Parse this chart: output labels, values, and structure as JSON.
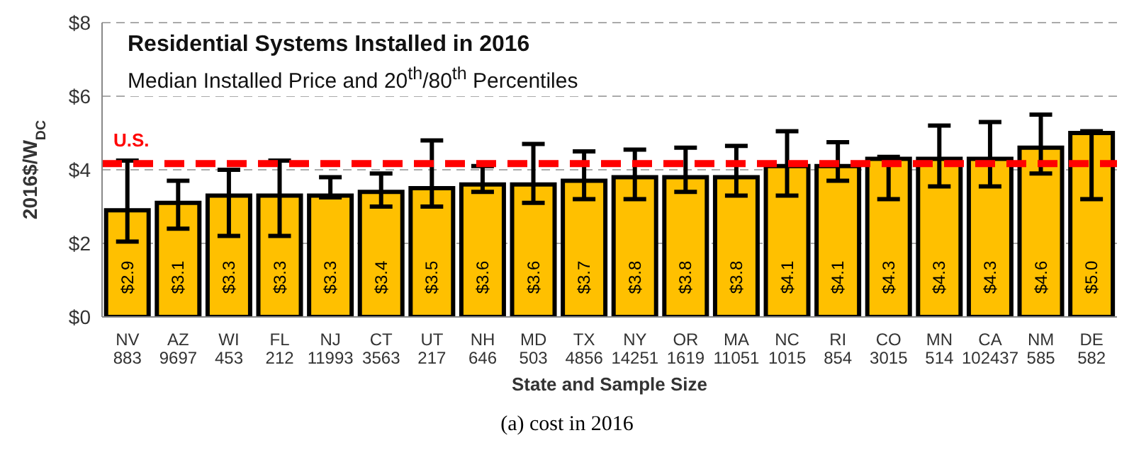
{
  "chart_data": {
    "type": "bar",
    "title": "Residential Systems Installed in 2016",
    "subtitle": "Median Installed Price and 20$^{th}$/80$^{th}$ Percentiles",
    "xlabel": "State and Sample Size",
    "ylabel": "2016$/W$_{DC}$",
    "annotations": [
      "(a) cost in 2016"
    ],
    "categories": [
      "NV\n883",
      "AZ\n9697",
      "WI\n453",
      "FL\n212",
      "NJ\n11993",
      "CT\n3563",
      "UT\n217",
      "NH\n646",
      "MD\n503",
      "TX\n4856",
      "NY\n14251",
      "OR\n1619",
      "MA\n11051",
      "NC\n1015",
      "RI\n854",
      "CO\n3015",
      "MN\n514",
      "CA\n102437",
      "NM\n585",
      "DE\n582"
    ],
    "values": [
      2.9,
      3.1,
      3.3,
      3.3,
      3.3,
      3.4,
      3.5,
      3.6,
      3.6,
      3.7,
      3.8,
      3.8,
      3.8,
      4.1,
      4.1,
      4.3,
      4.3,
      4.3,
      4.6,
      5.0
    ],
    "value_labels": [
      "$2.9",
      "$3.1",
      "$3.3",
      "$3.3",
      "$3.3",
      "$3.4",
      "$3.5",
      "$3.6",
      "$3.6",
      "$3.7",
      "$3.8",
      "$3.8",
      "$3.8",
      "$4.1",
      "$4.1",
      "$4.3",
      "$4.3",
      "$4.3",
      "$4.6",
      "$5.0"
    ],
    "errors": [
      [
        2.05,
        4.25
      ],
      [
        2.4,
        3.7
      ],
      [
        2.2,
        4.0
      ],
      [
        2.2,
        4.25
      ],
      [
        3.25,
        3.8
      ],
      [
        3.0,
        3.9
      ],
      [
        3.0,
        4.8
      ],
      [
        3.4,
        4.1
      ],
      [
        3.1,
        4.7
      ],
      [
        3.2,
        4.5
      ],
      [
        3.2,
        4.55
      ],
      [
        3.4,
        4.6
      ],
      [
        3.3,
        4.65
      ],
      [
        3.3,
        5.05
      ],
      [
        3.7,
        4.75
      ],
      [
        3.2,
        4.35
      ],
      [
        3.55,
        5.2
      ],
      [
        3.55,
        5.3
      ],
      [
        3.9,
        5.5
      ],
      [
        3.2,
        5.05
      ]
    ],
    "color": "#ffc000",
    "ylim": [
      0,
      8
    ],
    "yticks": [
      {
        "value": 0,
        "label": "$0"
      },
      {
        "value": 2,
        "label": "$2"
      },
      {
        "value": 4,
        "label": "$4"
      },
      {
        "value": 6,
        "label": "$6"
      },
      {
        "value": 8,
        "label": "$8"
      }
    ],
    "grid": "y",
    "ref_lines": [
      {
        "axis": "y",
        "value": 4.17,
        "label": "U.S.",
        "color": "#ff0000",
        "line_style": "dashed"
      }
    ]
  }
}
